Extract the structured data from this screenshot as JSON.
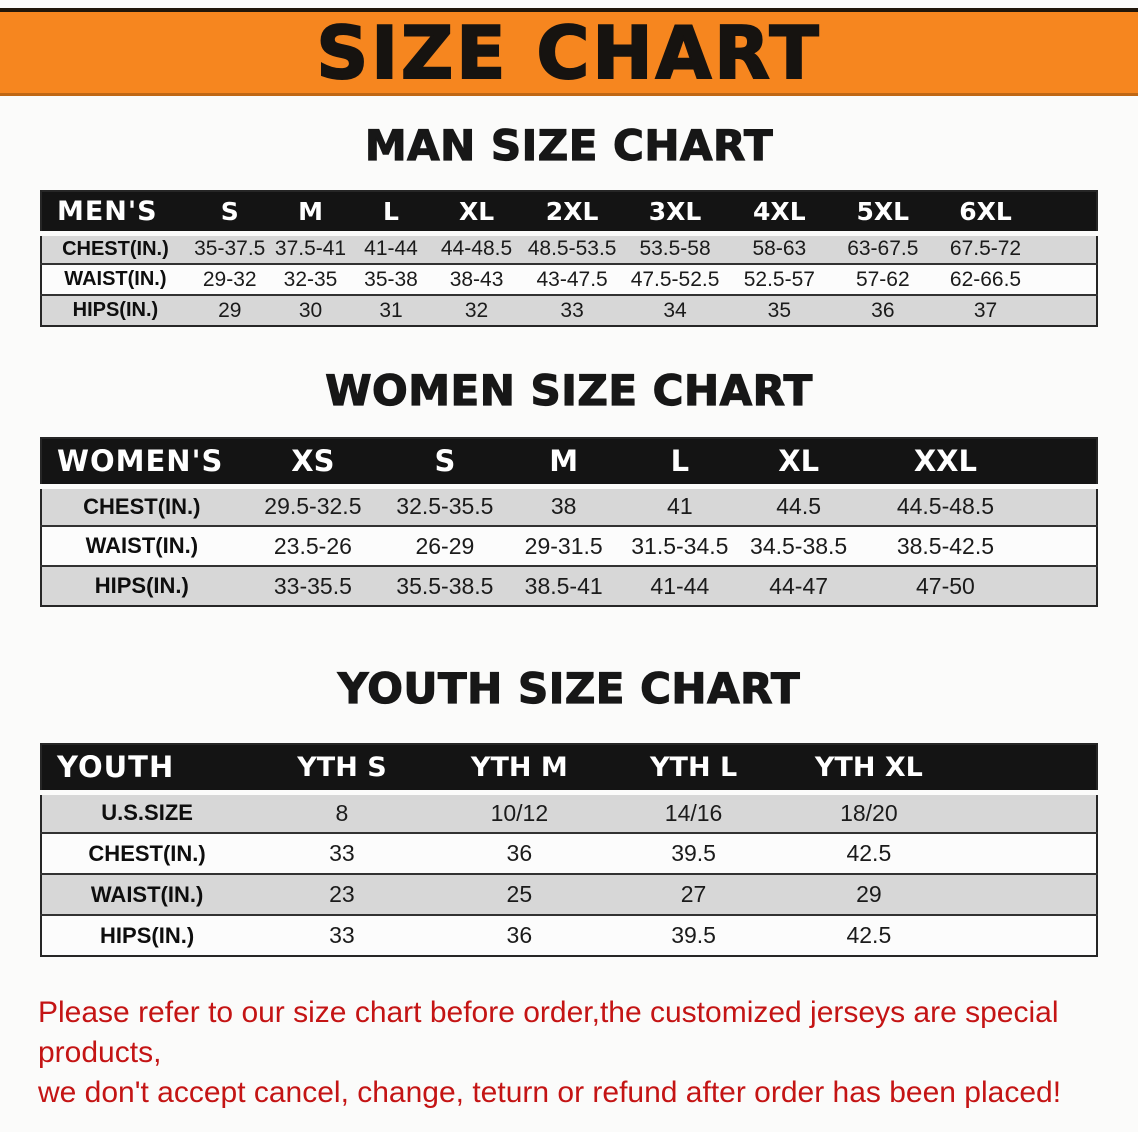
{
  "banner": {
    "title": "SIZE CHART"
  },
  "sections": [
    {
      "heading": "MAN SIZE CHART",
      "table": {
        "label": "MEN'S",
        "columns": [
          "S",
          "M",
          "L",
          "XL",
          "2XL",
          "3XL",
          "4XL",
          "5XL",
          "6XL"
        ],
        "rows": [
          {
            "label": "CHEST(IN.)",
            "values": [
              "35-37.5",
              "37.5-41",
              "41-44",
              "44-48.5",
              "48.5-53.5",
              "53.5-58",
              "58-63",
              "63-67.5",
              "67.5-72"
            ]
          },
          {
            "label": "WAIST(IN.)",
            "values": [
              "29-32",
              "32-35",
              "35-38",
              "38-43",
              "43-47.5",
              "47.5-52.5",
              "52.5-57",
              "57-62",
              "62-66.5"
            ]
          },
          {
            "label": "HIPS(IN.)",
            "values": [
              "29",
              "30",
              "31",
              "32",
              "33",
              "34",
              "35",
              "36",
              "37"
            ]
          }
        ]
      }
    },
    {
      "heading": "WOMEN SIZE CHART",
      "table": {
        "label": "WOMEN'S",
        "columns": [
          "XS",
          "S",
          "M",
          "L",
          "XL",
          "XXL"
        ],
        "rows": [
          {
            "label": "CHEST(IN.)",
            "values": [
              "29.5-32.5",
              "32.5-35.5",
              "38",
              "41",
              "44.5",
              "44.5-48.5"
            ]
          },
          {
            "label": "WAIST(IN.)",
            "values": [
              "23.5-26",
              "26-29",
              "29-31.5",
              "31.5-34.5",
              "34.5-38.5",
              "38.5-42.5"
            ]
          },
          {
            "label": "HIPS(IN.)",
            "values": [
              "33-35.5",
              "35.5-38.5",
              "38.5-41",
              "41-44",
              "44-47",
              "47-50"
            ]
          }
        ]
      }
    },
    {
      "heading": "YOUTH SIZE CHART",
      "table": {
        "label": "YOUTH",
        "columns": [
          "YTH S",
          "YTH M",
          "YTH L",
          "YTH XL"
        ],
        "rows": [
          {
            "label": "U.S.SIZE",
            "values": [
              "8",
              "10/12",
              "14/16",
              "18/20"
            ]
          },
          {
            "label": "CHEST(IN.)",
            "values": [
              "33",
              "36",
              "39.5",
              "42.5"
            ]
          },
          {
            "label": "WAIST(IN.)",
            "values": [
              "23",
              "25",
              "27",
              "29"
            ]
          },
          {
            "label": "HIPS(IN.)",
            "values": [
              "33",
              "36",
              "39.5",
              "42.5"
            ]
          }
        ]
      }
    }
  ],
  "footer": {
    "line1": "Please refer to our size chart before order,the customized jerseys are special products,",
    "line2": "we don't accept cancel, change, teturn or refund after order has been placed!"
  },
  "colors": {
    "banner_orange": "#f6861f",
    "header_black": "#141414",
    "row_gray": "#d7d7d7",
    "note_red": "#c41414"
  }
}
